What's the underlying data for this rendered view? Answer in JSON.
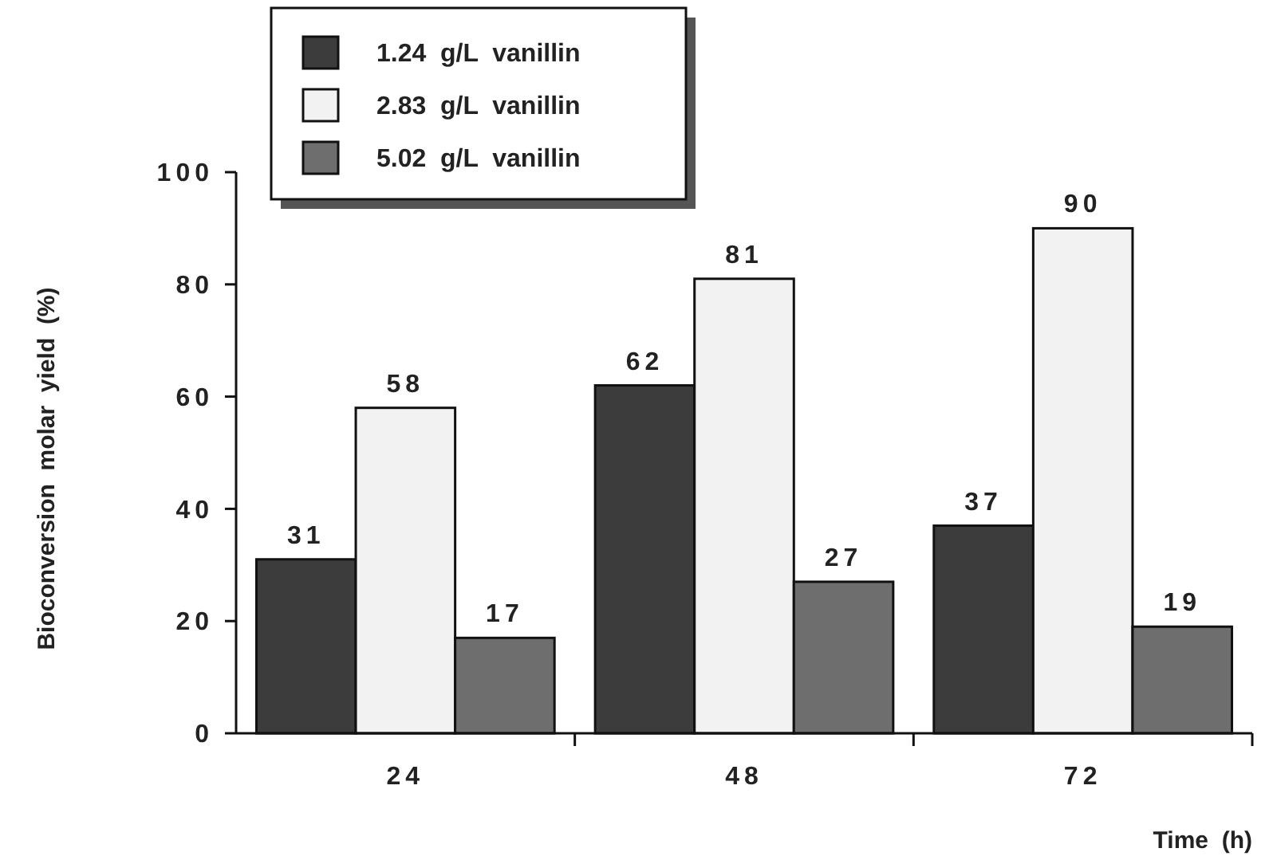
{
  "chart_data": {
    "type": "bar",
    "xlabel": "Time  (h)",
    "ylabel": "Bioconversion  molar  yield  (%)",
    "categories": [
      "24",
      "48",
      "72"
    ],
    "series": [
      {
        "name": "1.24  g/L  vanillin",
        "color": "#3c3c3c",
        "values": [
          31,
          62,
          37
        ]
      },
      {
        "name": "2.83  g/L  vanillin",
        "color": "#f2f2f2",
        "values": [
          58,
          81,
          90
        ]
      },
      {
        "name": "5.02  g/L  vanillin",
        "color": "#6e6e6e",
        "values": [
          17,
          27,
          19
        ]
      }
    ],
    "ylim": [
      0,
      100
    ],
    "yticks": [
      0,
      20,
      40,
      60,
      80,
      100
    ],
    "data_labels": true,
    "legend": "top left",
    "grid": false
  }
}
